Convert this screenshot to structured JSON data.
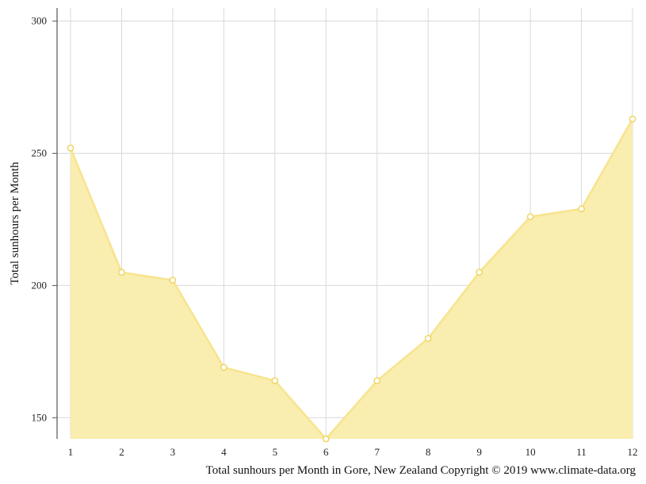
{
  "chart_data": {
    "type": "area",
    "x": [
      1,
      2,
      3,
      4,
      5,
      6,
      7,
      8,
      9,
      10,
      11,
      12
    ],
    "series": [
      {
        "values": [
          252,
          205,
          202,
          169,
          164,
          142,
          164,
          180,
          205,
          226,
          229,
          263
        ]
      }
    ],
    "xlabel": "",
    "ylabel": "Total sunhours per Month",
    "ylim": [
      142,
      305
    ],
    "yticks": [
      150,
      200,
      250,
      300
    ],
    "grid": true,
    "caption": "Total sunhours per Month in Gore, New Zealand Copyright © 2019 www.climate-data.org",
    "colors": {
      "fill": "#f9edaf",
      "line": "#f7e48e",
      "marker_fill": "#ffffff",
      "marker_stroke": "#f0d560",
      "grid": "#d9d9d9"
    }
  }
}
